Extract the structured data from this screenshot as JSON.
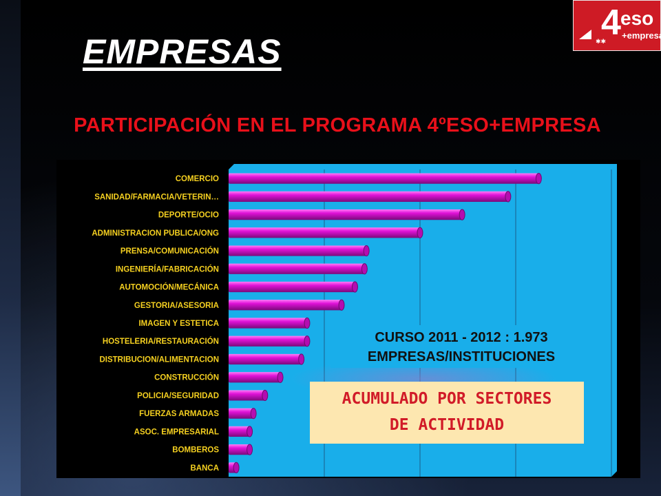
{
  "slide": {
    "title": "EMPRESAS",
    "subtitle": "PARTICIPACIÓN EN EL PROGRAMA 4ºESO+EMPRESA",
    "logo": {
      "number": "4",
      "line1": "eso",
      "line2": "+empresa",
      "bg_color": "#ce1b25"
    },
    "info_box": {
      "line1": "CURSO 2011 - 2012 : 1.973",
      "line2": "EMPRESAS/INSTITUCIONES"
    },
    "note_box": {
      "line1": "ACUMULADO POR SECTORES",
      "line2": "DE ACTIVIDAD"
    }
  },
  "chart_data": {
    "type": "bar",
    "orientation": "horizontal",
    "title": "",
    "xlabel": "",
    "ylabel": "",
    "categories": [
      "COMERCIO",
      "SANIDAD/FARMACIA/VETERIN…",
      "DEPORTE/OCIO",
      "ADMINISTRACION PUBLICA/ONG",
      "PRENSA/COMUNICACIÓN",
      "INGENIERÍA/FABRICACIÓN",
      "AUTOMOCIÓN/MECÁNICA",
      "GESTORIA/ASESORIA",
      "IMAGEN Y ESTETICA",
      "HOSTELERIA/RESTAURACIÓN",
      "DISTRIBUCION/ALIMENTACION",
      "CONSTRUCCIÓN",
      "POLICIA/SEGURIDAD",
      "FUERZAS ARMADAS",
      "ASOC. EMPRESARIAL",
      "BOMBEROS",
      "BANCA"
    ],
    "values": [
      162,
      146,
      122,
      100,
      72,
      71,
      66,
      59,
      41,
      41,
      38,
      27,
      19,
      13,
      11,
      11,
      4
    ],
    "xlim": [
      0,
      200
    ],
    "grid_x": true,
    "bar_color": "#e012d8",
    "plot_bg_color": "#19aeea",
    "label_color": "#f5d020"
  }
}
